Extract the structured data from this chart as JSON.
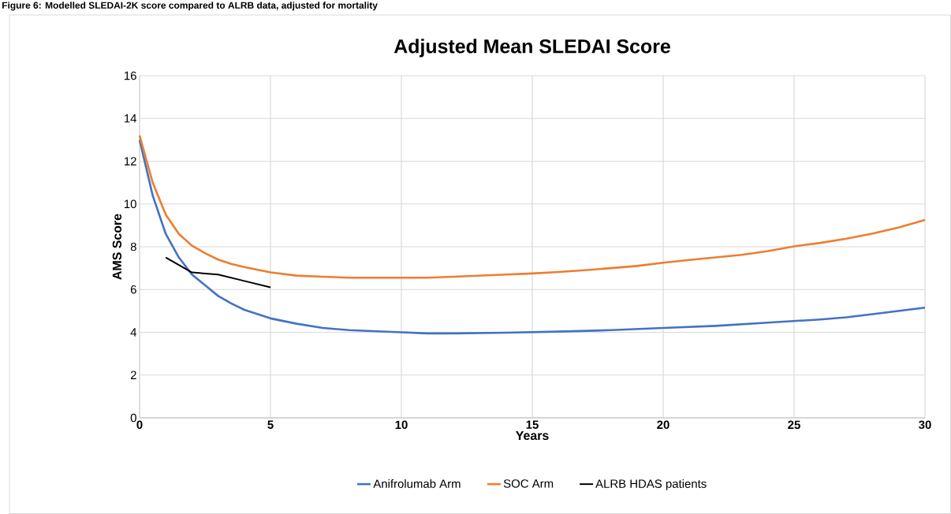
{
  "chart_data": {
    "type": "line",
    "title": "Adjusted Mean SLEDAI Score",
    "xlabel": "Years",
    "ylabel": "AMS Score",
    "annotations": [
      "Figure 6: Modelled SLEDAI-2K score compared to ALRB data, adjusted for mortality"
    ],
    "xlim": [
      0,
      30
    ],
    "ylim": [
      0,
      16
    ],
    "xticks": [
      0,
      5,
      10,
      15,
      20,
      25,
      30
    ],
    "yticks": [
      0,
      2,
      4,
      6,
      8,
      10,
      12,
      14,
      16
    ],
    "grid": true,
    "legend": "bottom",
    "marker": "none",
    "line_style": "solid",
    "series": [
      {
        "name": "Anifrolumab Arm",
        "color": "#4472c4",
        "x": [
          0,
          0.5,
          1,
          1.5,
          2,
          2.5,
          3,
          3.5,
          4,
          5,
          6,
          7,
          8,
          9,
          10,
          11,
          12,
          14,
          16,
          18,
          20,
          22,
          24,
          26,
          27,
          28,
          29,
          30
        ],
        "values": [
          13.0,
          10.4,
          8.6,
          7.5,
          6.7,
          6.2,
          5.7,
          5.35,
          5.05,
          4.65,
          4.4,
          4.2,
          4.1,
          4.05,
          4.0,
          3.95,
          3.95,
          3.98,
          4.03,
          4.1,
          4.2,
          4.3,
          4.45,
          4.6,
          4.7,
          4.85,
          5.0,
          5.15
        ]
      },
      {
        "name": "SOC Arm",
        "color": "#ed7d31",
        "x": [
          0,
          0.5,
          1,
          1.5,
          2,
          2.5,
          3,
          3.5,
          4,
          5,
          6,
          7,
          8,
          10,
          11,
          12,
          14,
          15,
          16,
          17,
          18,
          19,
          20,
          21,
          22,
          23,
          24,
          25,
          26,
          27,
          28,
          29,
          30
        ],
        "values": [
          13.2,
          11.0,
          9.5,
          8.6,
          8.05,
          7.7,
          7.4,
          7.2,
          7.05,
          6.8,
          6.65,
          6.6,
          6.55,
          6.55,
          6.55,
          6.6,
          6.7,
          6.75,
          6.82,
          6.9,
          7.0,
          7.1,
          7.25,
          7.38,
          7.5,
          7.62,
          7.8,
          8.02,
          8.18,
          8.38,
          8.62,
          8.9,
          9.25
        ]
      },
      {
        "name": "ALRB HDAS patients",
        "color": "#000000",
        "x": [
          1,
          2,
          3,
          4,
          5
        ],
        "values": [
          7.5,
          6.8,
          6.7,
          6.4,
          6.1
        ]
      }
    ]
  }
}
